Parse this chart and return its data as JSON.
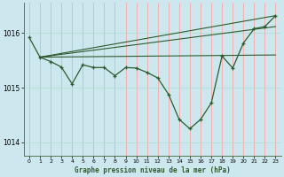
{
  "bg_color": "#cce8ee",
  "grid_color_v": "#ff9999",
  "grid_color_h": "#aaddcc",
  "line_color": "#2d5a2d",
  "title": "Graphe pression niveau de la mer (hPa)",
  "xlim": [
    -0.5,
    23.5
  ],
  "ylim": [
    1013.75,
    1016.55
  ],
  "yticks": [
    1014,
    1015,
    1016
  ],
  "xticks": [
    0,
    1,
    2,
    3,
    4,
    5,
    6,
    7,
    8,
    9,
    10,
    11,
    12,
    13,
    14,
    15,
    16,
    17,
    18,
    19,
    20,
    21,
    22,
    23
  ],
  "main_line": [
    [
      0,
      1015.92
    ],
    [
      1,
      1015.56
    ],
    [
      2,
      1015.48
    ],
    [
      3,
      1015.38
    ],
    [
      4,
      1015.07
    ],
    [
      5,
      1015.42
    ],
    [
      6,
      1015.37
    ],
    [
      7,
      1015.37
    ],
    [
      8,
      1015.22
    ],
    [
      9,
      1015.37
    ],
    [
      10,
      1015.36
    ],
    [
      11,
      1015.28
    ],
    [
      12,
      1015.18
    ],
    [
      13,
      1014.88
    ],
    [
      14,
      1014.42
    ],
    [
      15,
      1014.25
    ],
    [
      16,
      1014.42
    ],
    [
      17,
      1014.72
    ],
    [
      18,
      1015.58
    ],
    [
      19,
      1015.36
    ],
    [
      20,
      1015.82
    ],
    [
      21,
      1016.08
    ],
    [
      22,
      1016.12
    ],
    [
      23,
      1016.32
    ]
  ],
  "trend_line1": [
    [
      1,
      1015.56
    ],
    [
      23,
      1016.32
    ]
  ],
  "trend_line2": [
    [
      1,
      1015.56
    ],
    [
      23,
      1016.12
    ]
  ],
  "trend_line3": [
    [
      1,
      1015.56
    ],
    [
      23,
      1015.6
    ]
  ]
}
